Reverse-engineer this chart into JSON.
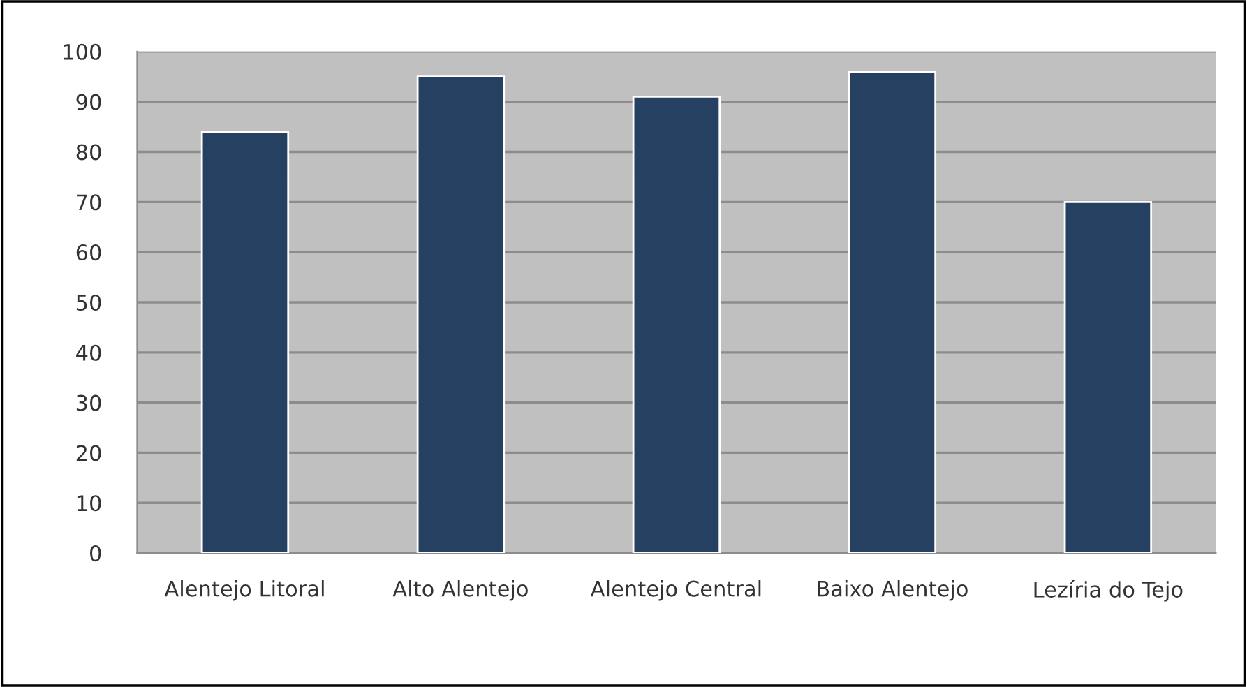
{
  "chart_data": {
    "type": "bar",
    "categories": [
      "Alentejo Litoral",
      "Alto Alentejo",
      "Alentejo Central",
      "Baixo Alentejo",
      "Lezíria do Tejo"
    ],
    "values": [
      84,
      95,
      91,
      96,
      70
    ],
    "color": "#254061",
    "ylim": [
      0,
      100
    ],
    "yticks": [
      0,
      10,
      20,
      30,
      40,
      50,
      60,
      70,
      80,
      90,
      100
    ],
    "grid": "y"
  }
}
